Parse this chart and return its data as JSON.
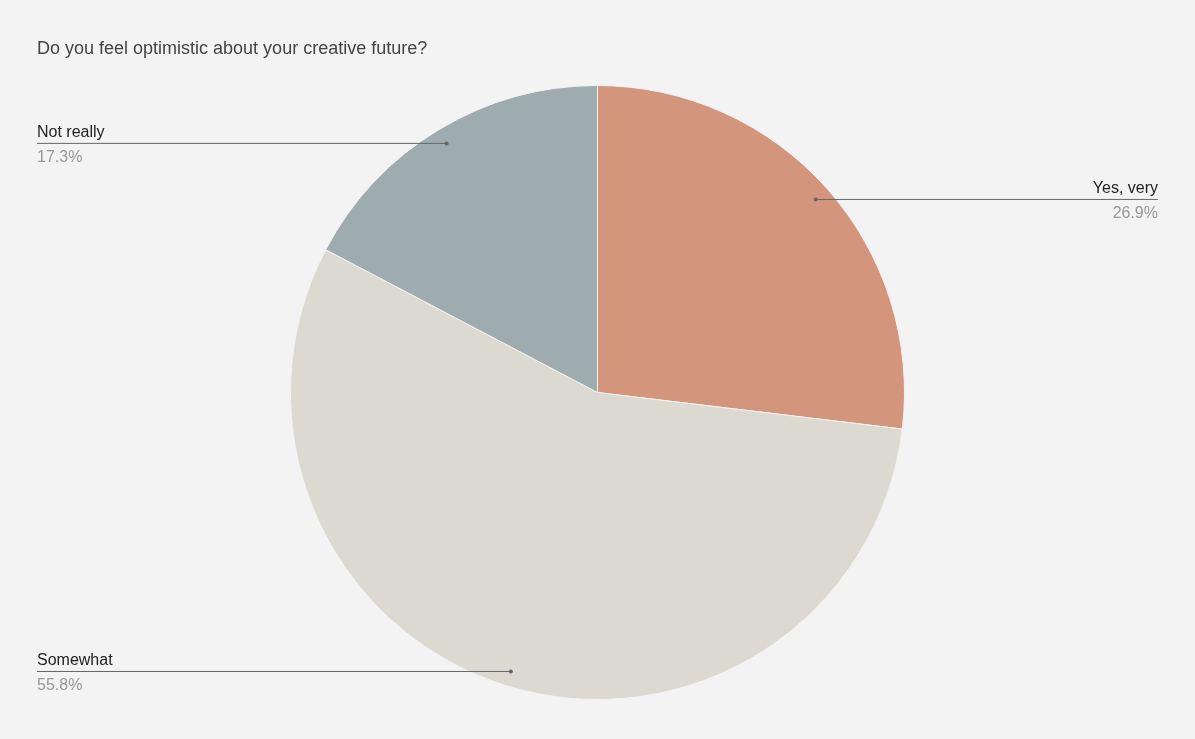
{
  "chart_data": {
    "type": "pie",
    "title": "Do you feel optimistic about your creative future?",
    "categories": [
      "Yes, very",
      "Somewhat",
      "Not really"
    ],
    "values": [
      26.9,
      55.8,
      17.3
    ],
    "value_labels": [
      "26.9%",
      "55.8%",
      "17.3%"
    ],
    "colors": [
      "#d4957d",
      "#dcd9d1",
      "#9eacb0"
    ],
    "legend": false
  }
}
